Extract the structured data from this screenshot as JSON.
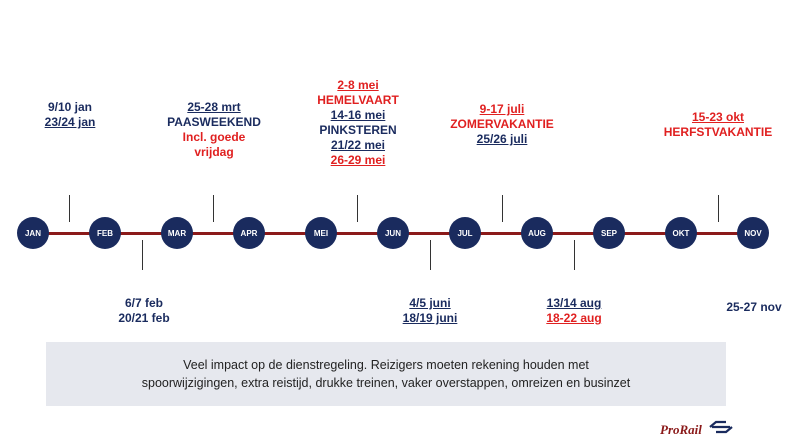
{
  "colors": {
    "accent_red": "#e02020",
    "navy": "#1a2b5e",
    "line": "#8b1a1a",
    "note_bg": "#e6e8ee"
  },
  "months": [
    "JAN",
    "FEB",
    "MAR",
    "APR",
    "MEI",
    "JUN",
    "JUL",
    "AUG",
    "SEP",
    "OKT",
    "NOV"
  ],
  "top": {
    "jan": [
      "9/10 jan",
      "23/24 jan"
    ],
    "mar": [
      "25-28 mrt",
      "PAASWEEKEND",
      "Incl. goede",
      "vrijdag"
    ],
    "mei": [
      "2-8 mei",
      "HEMELVAART",
      "14-16 mei",
      "PINKSTEREN",
      "21/22 mei",
      "26-29 mei"
    ],
    "jul": [
      "9-17 juli",
      "ZOMERVAKANTIE",
      "25/26 juli"
    ],
    "okt": [
      "15-23 okt",
      "HERFSTVAKANTIE"
    ]
  },
  "bottom": {
    "feb": [
      "6/7 feb",
      "20/21 feb"
    ],
    "jun": [
      "4/5 juni",
      "18/19 juni"
    ],
    "aug": [
      "13/14 aug",
      "18-22 aug"
    ],
    "nov": [
      "25-27 nov"
    ]
  },
  "note": {
    "line1": "Veel impact op de dienstregeling. Reizigers moeten rekening houden met",
    "line2": "spoorwijzigingen, extra reistijd, drukke treinen, vaker overstappen, omreizen en businzet"
  },
  "logo": {
    "text": "ProRail",
    "icon": "ns-logo-icon"
  }
}
